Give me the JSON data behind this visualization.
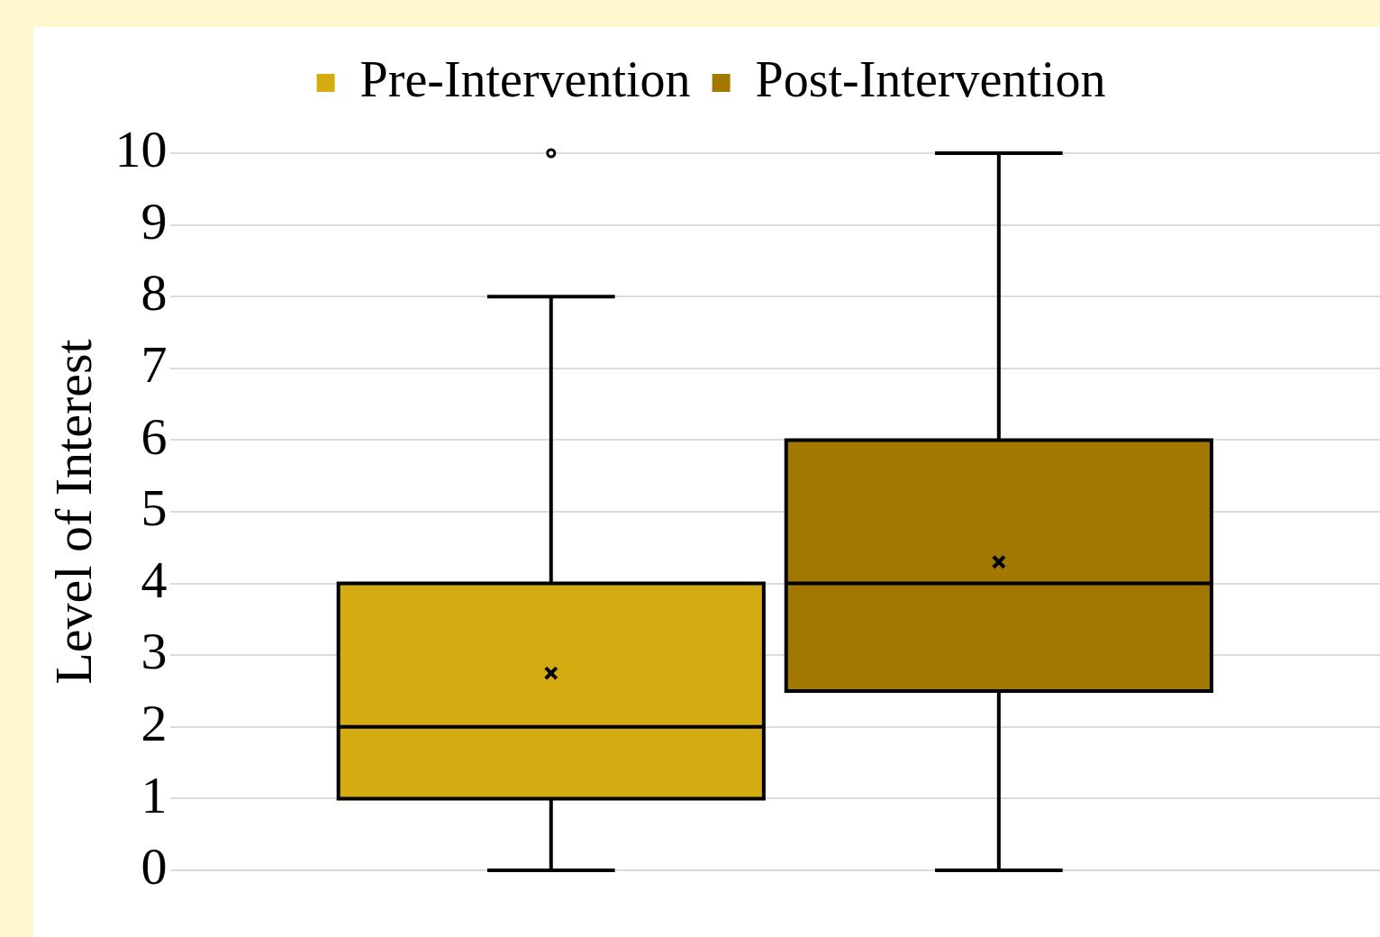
{
  "chart_data": {
    "type": "box",
    "ylabel": "Level of Interest",
    "categories": [
      null
    ],
    "series": [
      {
        "name": "Pre-Intervention",
        "color": "#d5ab12",
        "boxes": [
          {
            "low": 0,
            "q1": 1,
            "median": 2,
            "q3": 4,
            "high": 8,
            "mean": 2.75,
            "outliers": [
              10
            ]
          }
        ]
      },
      {
        "name": "Post-Intervention",
        "color": "#a37800",
        "boxes": [
          {
            "low": 0,
            "q1": 2.5,
            "median": 4,
            "q3": 6,
            "high": 10,
            "mean": 4.3
          }
        ]
      }
    ],
    "ylim": [
      0,
      10
    ],
    "yticks": [
      0,
      1,
      2,
      3,
      4,
      5,
      6,
      7,
      8,
      9,
      10
    ],
    "grid": "y",
    "legend": "top"
  }
}
